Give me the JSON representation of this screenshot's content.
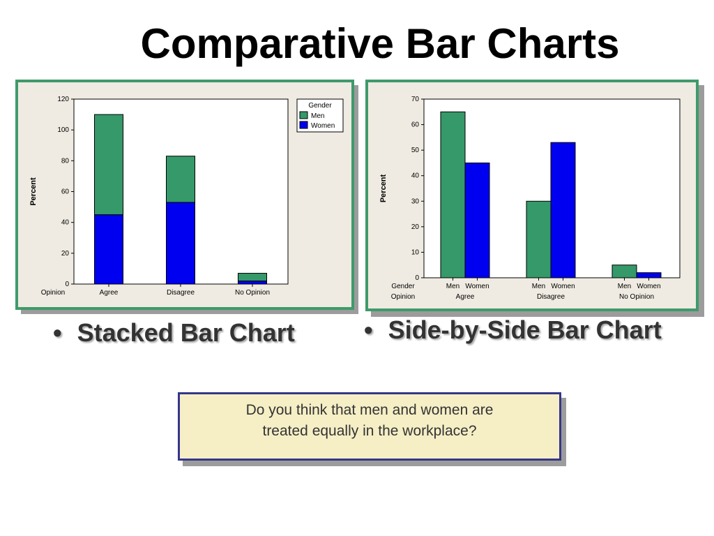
{
  "slide": {
    "title": "Comparative Bar Charts",
    "bullet_left": "Stacked Bar Chart",
    "bullet_right": "Side-by-Side Bar Chart",
    "bullet_symbol": "•",
    "question_line1": "Do you think that men and women are",
    "question_line2": "treated equally in the workplace?"
  },
  "colors": {
    "men": "#35996a",
    "women": "#0000f0",
    "panel_border": "#3f9a6a",
    "panel_bg": "#efebe2"
  },
  "chart_data": [
    {
      "type": "bar",
      "stacked": true,
      "categories": [
        "Agree",
        "Disagree",
        "No Opinion"
      ],
      "category_axis_label": "Opinion",
      "ylabel": "Percent",
      "ylim": [
        0,
        120
      ],
      "yticks": [
        0,
        20,
        40,
        60,
        80,
        100,
        120
      ],
      "legend": {
        "title": "Gender",
        "placement": "top-right"
      },
      "series": [
        {
          "name": "Men",
          "values": [
            65,
            30,
            5
          ]
        },
        {
          "name": "Women",
          "values": [
            45,
            53,
            2
          ]
        }
      ]
    },
    {
      "type": "bar",
      "stacked": false,
      "categories": [
        "Agree",
        "Disagree",
        "No Opinion"
      ],
      "group_axis_label": "Gender",
      "category_axis_label": "Opinion",
      "ylabel": "Percent",
      "ylim": [
        0,
        70
      ],
      "yticks": [
        0,
        10,
        20,
        30,
        40,
        50,
        60,
        70
      ],
      "series": [
        {
          "name": "Men",
          "values": [
            65,
            30,
            5
          ]
        },
        {
          "name": "Women",
          "values": [
            45,
            53,
            2
          ]
        }
      ]
    }
  ]
}
